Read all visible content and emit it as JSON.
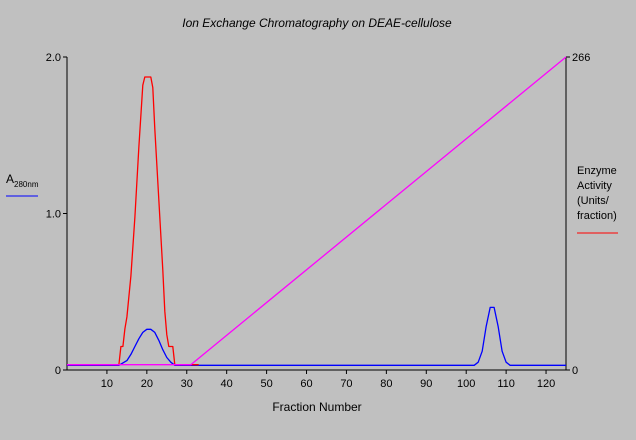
{
  "chart_data": {
    "type": "line",
    "title": "Ion Exchange Chromatography on DEAE-cellulose",
    "xlabel": "Fraction Number",
    "xlim": [
      0,
      125
    ],
    "x_ticks": [
      10,
      20,
      30,
      40,
      50,
      60,
      70,
      80,
      90,
      100,
      110,
      120
    ],
    "y_left": {
      "label_main": "A",
      "label_sub": "280nm",
      "lim": [
        0,
        2.0
      ],
      "ticks": [
        "0",
        "1.0",
        "2.0"
      ],
      "tick_values": [
        0,
        1.0,
        2.0
      ]
    },
    "y_right": {
      "label_lines": [
        "Enzyme",
        "Activity",
        "(Units/",
        "fraction)"
      ],
      "lim": [
        0,
        266
      ],
      "ticks": [
        "0",
        "266"
      ],
      "tick_values": [
        0,
        266
      ]
    },
    "series": [
      {
        "axis": "left",
        "color": "#0000ff",
        "points": [
          [
            0,
            0.03
          ],
          [
            13,
            0.03
          ],
          [
            15,
            0.06
          ],
          [
            16,
            0.1
          ],
          [
            17,
            0.15
          ],
          [
            18,
            0.2
          ],
          [
            19,
            0.24
          ],
          [
            20,
            0.26
          ],
          [
            21,
            0.26
          ],
          [
            22,
            0.24
          ],
          [
            23,
            0.19
          ],
          [
            24,
            0.13
          ],
          [
            25,
            0.08
          ],
          [
            26,
            0.05
          ],
          [
            27,
            0.03
          ],
          [
            102,
            0.03
          ],
          [
            103,
            0.05
          ],
          [
            104,
            0.12
          ],
          [
            105,
            0.28
          ],
          [
            106,
            0.4
          ],
          [
            107,
            0.4
          ],
          [
            108,
            0.28
          ],
          [
            109,
            0.12
          ],
          [
            110,
            0.05
          ],
          [
            111,
            0.03
          ],
          [
            125,
            0.03
          ]
        ]
      },
      {
        "axis": "right",
        "color": "#ff0000",
        "points": [
          [
            0,
            4.5
          ],
          [
            13,
            4.5
          ],
          [
            13.5,
            20
          ],
          [
            14,
            20
          ],
          [
            14.5,
            35
          ],
          [
            15,
            45
          ],
          [
            16,
            80
          ],
          [
            17,
            130
          ],
          [
            18,
            190
          ],
          [
            19,
            242
          ],
          [
            19.5,
            249
          ],
          [
            21,
            249
          ],
          [
            21.5,
            240
          ],
          [
            22,
            205
          ],
          [
            23,
            145
          ],
          [
            24,
            85
          ],
          [
            24.5,
            50
          ],
          [
            25,
            30
          ],
          [
            25.5,
            20
          ],
          [
            26.5,
            20
          ],
          [
            27,
            4.5
          ],
          [
            33,
            4.5
          ]
        ]
      },
      {
        "axis": "right",
        "color": "#ff00ff",
        "points": [
          [
            0,
            4.5
          ],
          [
            31,
            4.5
          ],
          [
            125,
            266
          ]
        ]
      }
    ],
    "grid": false
  }
}
